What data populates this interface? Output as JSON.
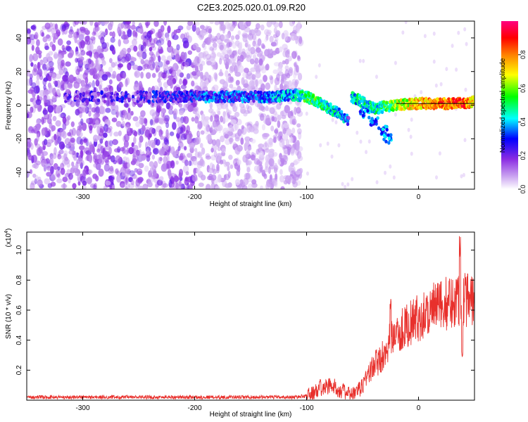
{
  "title": "C2E3.2025.020.01.09.R20",
  "chart_data": [
    {
      "type": "heatmap",
      "xlabel": "Height of straight line (km)",
      "ylabel": "Frequency (Hz)",
      "xlim": [
        -350,
        50
      ],
      "ylim": [
        -50,
        50
      ],
      "xticks": [
        -300,
        -200,
        -100,
        0
      ],
      "yticks": [
        -40,
        -20,
        0,
        20,
        40
      ],
      "colorbar": {
        "label": "Normalized spectral amplitude",
        "range": [
          0,
          1
        ],
        "ticks": [
          0.0,
          0.2,
          0.4,
          0.6,
          0.8
        ],
        "colors": [
          "#ffffff",
          "#8a2be2",
          "#0000ff",
          "#00ffff",
          "#00ff00",
          "#ffff00",
          "#ff8000",
          "#ff0000",
          "#ff0080"
        ]
      },
      "noise_region": {
        "x_from": -350,
        "x_to": -105
      },
      "ridge": [
        {
          "x": -320,
          "y": 5,
          "a": 0.18
        },
        {
          "x": -230,
          "y": 5,
          "a": 0.22
        },
        {
          "x": -180,
          "y": 5,
          "a": 0.3
        },
        {
          "x": -150,
          "y": 5,
          "a": 0.3
        },
        {
          "x": -130,
          "y": 5,
          "a": 0.35
        },
        {
          "x": -110,
          "y": 6,
          "a": 0.4
        },
        {
          "x": -100,
          "y": 5,
          "a": 0.5
        },
        {
          "x": -90,
          "y": 2,
          "a": 0.5
        },
        {
          "x": -80,
          "y": -2,
          "a": 0.45
        },
        {
          "x": -70,
          "y": -5,
          "a": 0.4
        },
        {
          "x": -62,
          "y": -10,
          "a": 0.25
        },
        {
          "x": -60,
          "y": 5,
          "a": 0.4
        },
        {
          "x": -50,
          "y": 2,
          "a": 0.45
        },
        {
          "x": -40,
          "y": -2,
          "a": 0.45
        },
        {
          "x": -30,
          "y": -1,
          "a": 0.5
        },
        {
          "x": -20,
          "y": 0,
          "a": 0.6
        },
        {
          "x": 0,
          "y": 1,
          "a": 0.75
        },
        {
          "x": 20,
          "y": 1,
          "a": 0.8
        },
        {
          "x": 40,
          "y": 1,
          "a": 0.85
        },
        {
          "x": 50,
          "y": 2,
          "a": 0.7
        }
      ],
      "branch": [
        {
          "x": -48,
          "y": -5
        },
        {
          "x": -40,
          "y": -10
        },
        {
          "x": -32,
          "y": -15
        },
        {
          "x": -27,
          "y": -20
        }
      ]
    },
    {
      "type": "line",
      "xlabel": "Height of straight line (km)",
      "ylabel": "SNR (10 * v/v)",
      "yscale_label": "(x10",
      "yscale_exp": "4",
      "yscale_close": ")",
      "xlim": [
        -350,
        50
      ],
      "ylim": [
        0,
        1.12
      ],
      "xticks": [
        -300,
        -200,
        -100,
        0
      ],
      "yticks": [
        0.2,
        0.4,
        0.6,
        0.8,
        1.0
      ],
      "color": "#e8302c",
      "series": [
        {
          "x": [
            -350,
            -300,
            -250,
            -200,
            -150,
            -110,
            -100,
            -90,
            -80,
            -70,
            -62,
            -55,
            -50,
            -45,
            -40,
            -35,
            -30,
            -25,
            -20,
            -10,
            0,
            10,
            20,
            30,
            35,
            40,
            45,
            50
          ],
          "values": [
            0.02,
            0.02,
            0.02,
            0.02,
            0.02,
            0.02,
            0.03,
            0.06,
            0.1,
            0.07,
            0.04,
            0.05,
            0.1,
            0.18,
            0.22,
            0.26,
            0.33,
            0.4,
            0.45,
            0.5,
            0.55,
            0.6,
            0.63,
            0.66,
            0.68,
            0.66,
            0.68,
            0.67
          ],
          "spikes": [
            {
              "x": -88,
              "v": 0.14
            },
            {
              "x": -38,
              "v": 0.34
            },
            {
              "x": -25,
              "v": 0.68
            },
            {
              "x": -19,
              "v": 0.56
            },
            {
              "x": 37,
              "v": 1.12
            },
            {
              "x": 39,
              "v": 0.34
            },
            {
              "x": 42,
              "v": 0.86
            }
          ]
        }
      ]
    }
  ]
}
